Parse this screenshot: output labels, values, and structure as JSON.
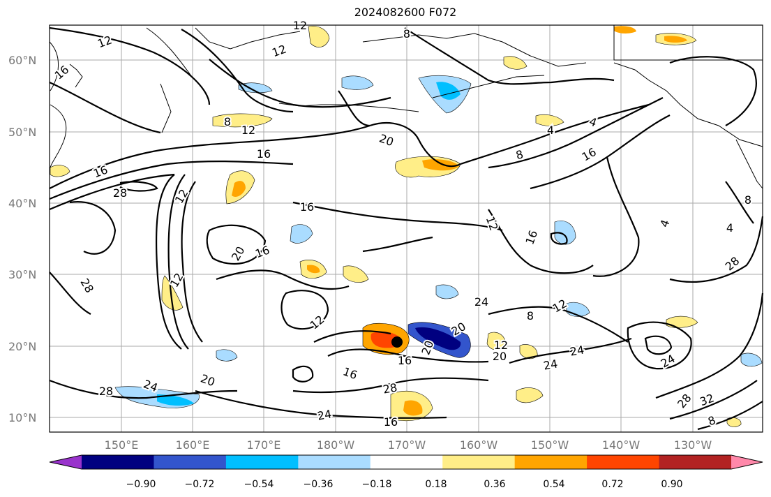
{
  "title": "2024082600 F072",
  "lat_labels": [
    "60°N",
    "50°N",
    "40°N",
    "30°N",
    "20°N",
    "10°N"
  ],
  "lon_labels": [
    "150°E",
    "160°E",
    "170°E",
    "180°W",
    "170°W",
    "160°W",
    "150°W",
    "140°W",
    "130°W"
  ],
  "contour_labels": [
    "12",
    "12",
    "12",
    "16",
    "8",
    "12",
    "16",
    "20",
    "8",
    "4",
    "4",
    "8",
    "16",
    "16",
    "28",
    "12",
    "16",
    "12",
    "16",
    "20",
    "16",
    "28",
    "12",
    "24",
    "12",
    "12",
    "20",
    "24",
    "20",
    "16",
    "16",
    "24",
    "24",
    "28",
    "24",
    "20",
    "28",
    "24",
    "28",
    "32",
    "8",
    "8",
    "4",
    "4",
    "28",
    "16",
    "20",
    "12",
    "8"
  ],
  "colorbar": {
    "ticks": [
      "−0.90",
      "−0.72",
      "−0.54",
      "−0.36",
      "−0.18",
      "0.18",
      "0.36",
      "0.54",
      "0.72",
      "0.90"
    ],
    "colors": [
      "#9933cc",
      "#000080",
      "#3355cc",
      "#00bfff",
      "#aadcff",
      "#ffffff",
      "#ffee88",
      "#ffa500",
      "#ff4500",
      "#b22222",
      "#ff88aa"
    ]
  },
  "colors": {
    "frame": "#000000",
    "grid": "#aaaaaa",
    "axis_text": "#777777",
    "contour": "#000000"
  }
}
